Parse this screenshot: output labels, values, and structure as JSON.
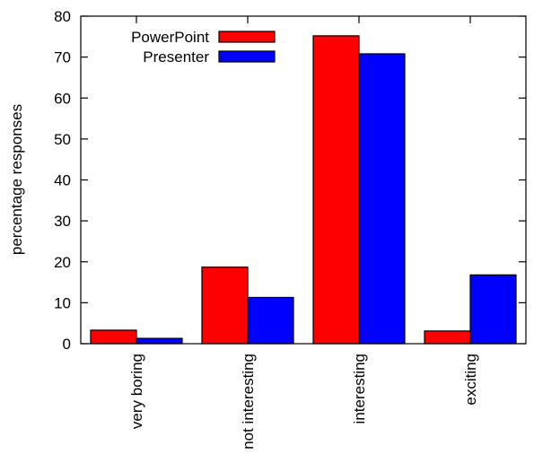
{
  "chart_data": {
    "type": "bar",
    "categories": [
      "very boring",
      "not interesting",
      "interesting",
      "exciting"
    ],
    "series": [
      {
        "name": "PowerPoint",
        "color": "#ff0000",
        "values": [
          3.3,
          18.7,
          75.2,
          3.1
        ]
      },
      {
        "name": "Presenter",
        "color": "#0000ff",
        "values": [
          1.3,
          11.3,
          70.8,
          16.8
        ]
      }
    ],
    "title": "",
    "xlabel": "",
    "ylabel": "percentage responses",
    "ylim": [
      0,
      80
    ],
    "yticks": [
      0,
      10,
      20,
      30,
      40,
      50,
      60,
      70,
      80
    ],
    "legend_position": "top-left",
    "grid": false
  }
}
